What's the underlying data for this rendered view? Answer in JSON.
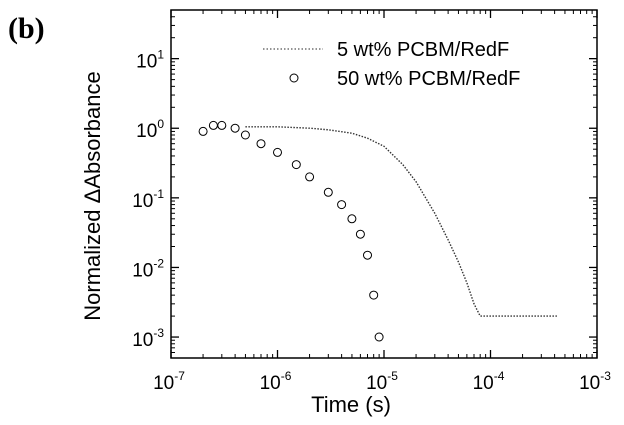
{
  "panel_label": "(b)",
  "chart_data": {
    "type": "scatter",
    "xlabel": "Time (s)",
    "ylabel": "Normalized ΔAbsorbance",
    "xscale": "log",
    "yscale": "log",
    "xlim": [
      1e-07,
      0.001
    ],
    "ylim": [
      0.0005,
      50
    ],
    "x_ticks": [
      {
        "base": "10",
        "exp": "-7",
        "value": 1e-07
      },
      {
        "base": "10",
        "exp": "-6",
        "value": 1e-06
      },
      {
        "base": "10",
        "exp": "-5",
        "value": 1e-05
      },
      {
        "base": "10",
        "exp": "-4",
        "value": 0.0001
      },
      {
        "base": "10",
        "exp": "-3",
        "value": 0.001
      }
    ],
    "y_ticks": [
      {
        "base": "10",
        "exp": "-3",
        "value": 0.001
      },
      {
        "base": "10",
        "exp": "-2",
        "value": 0.01
      },
      {
        "base": "10",
        "exp": "-1",
        "value": 0.1
      },
      {
        "base": "10",
        "exp": "0",
        "value": 1
      },
      {
        "base": "10",
        "exp": "1",
        "value": 10
      }
    ],
    "legend_position": "top-right",
    "series": [
      {
        "name": "5 wt% PCBM/RedF",
        "style": "dotted line",
        "color": "#000000",
        "x": [
          5e-07,
          1e-06,
          2e-06,
          3e-06,
          5e-06,
          7e-06,
          1e-05,
          1.5e-05,
          2e-05,
          3e-05,
          4e-05,
          5e-05,
          6e-05,
          7e-05,
          8e-05,
          0.0001,
          0.00015,
          0.0002,
          0.0003,
          0.00042
        ],
        "y": [
          1.05,
          1.05,
          1.0,
          0.95,
          0.85,
          0.72,
          0.55,
          0.3,
          0.17,
          0.06,
          0.025,
          0.012,
          0.006,
          0.003,
          0.002,
          0.002,
          0.002,
          0.002,
          0.002,
          0.002
        ]
      },
      {
        "name": "50 wt% PCBM/RedF",
        "style": "open circles",
        "color": "#000000",
        "x": [
          2e-07,
          2.5e-07,
          3e-07,
          4e-07,
          5e-07,
          7e-07,
          1e-06,
          1.5e-06,
          2e-06,
          3e-06,
          4e-06,
          5e-06,
          6e-06,
          7e-06,
          8e-06,
          9e-06
        ],
        "y": [
          0.9,
          1.1,
          1.1,
          1.0,
          0.8,
          0.6,
          0.45,
          0.3,
          0.2,
          0.12,
          0.08,
          0.05,
          0.03,
          0.015,
          0.004,
          0.001
        ]
      }
    ]
  }
}
